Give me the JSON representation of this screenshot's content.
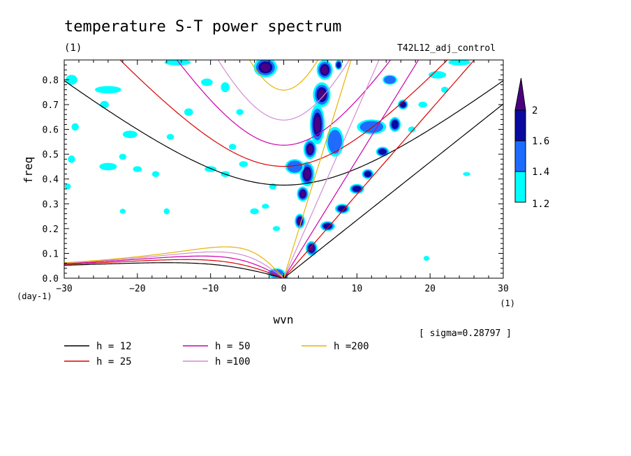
{
  "chart_data": {
    "type": "heatmap",
    "title": "temperature S-T power spectrum",
    "title_unit": "(1)",
    "experiment": "T42L12_adj_control",
    "xlabel": "wvn",
    "ylabel": "freq",
    "x_unit": "(1)",
    "y_unit": "(day-1)",
    "xlim": [
      -30,
      30
    ],
    "ylim": [
      0,
      0.88
    ],
    "x_ticks": [
      -30,
      -20,
      -10,
      0,
      10,
      20,
      30
    ],
    "x_tick_labels": [
      "-30",
      "-20",
      "-10",
      "0",
      "10",
      "20",
      "30"
    ],
    "y_ticks": [
      0,
      0.1,
      0.2,
      0.3,
      0.4,
      0.5,
      0.6,
      0.7,
      0.8
    ],
    "y_tick_labels": [
      "0.0",
      "0.1",
      "0.2",
      "0.3",
      "0.4",
      "0.5",
      "0.6",
      "0.7",
      "0.8"
    ],
    "sigma_label": "[ sigma=0.28797 ]",
    "colorbar": {
      "levels": [
        1.2,
        1.4,
        1.6,
        2
      ],
      "labels": [
        "1.2",
        "1.4",
        "1.6",
        "2"
      ],
      "colors": [
        "#00ffff",
        "#1e6cff",
        "#0a0aa0",
        "#4b0082"
      ]
    },
    "legend": [
      {
        "label": "h = 12",
        "color": "#000000",
        "h": 12
      },
      {
        "label": "h = 25",
        "color": "#dd0000",
        "h": 25
      },
      {
        "label": "h = 50",
        "color": "#cc00aa",
        "h": 50
      },
      {
        "label": "h =100",
        "color": "#d28cd2",
        "h": 100
      },
      {
        "label": "h =200",
        "color": "#e6b400",
        "h": 200
      }
    ],
    "blobs": [
      {
        "x": 3.8,
        "y": 0.12,
        "rx": 0.8,
        "ry": 0.03,
        "level": 3
      },
      {
        "x": 2.2,
        "y": 0.23,
        "rx": 0.7,
        "ry": 0.03,
        "level": 3
      },
      {
        "x": 2.6,
        "y": 0.34,
        "rx": 0.8,
        "ry": 0.03,
        "level": 3
      },
      {
        "x": 3.2,
        "y": 0.42,
        "rx": 1.0,
        "ry": 0.05,
        "level": 3
      },
      {
        "x": 3.6,
        "y": 0.52,
        "rx": 0.9,
        "ry": 0.04,
        "level": 3
      },
      {
        "x": 4.6,
        "y": 0.62,
        "rx": 1.0,
        "ry": 0.08,
        "level": 3
      },
      {
        "x": 5.2,
        "y": 0.74,
        "rx": 1.2,
        "ry": 0.05,
        "level": 3
      },
      {
        "x": 5.6,
        "y": 0.84,
        "rx": 1.1,
        "ry": 0.04,
        "level": 3
      },
      {
        "x": -2.5,
        "y": 0.85,
        "rx": 1.6,
        "ry": 0.04,
        "level": 3
      },
      {
        "x": 6.0,
        "y": 0.21,
        "rx": 1.0,
        "ry": 0.02,
        "level": 2
      },
      {
        "x": 8.0,
        "y": 0.28,
        "rx": 1.0,
        "ry": 0.02,
        "level": 2
      },
      {
        "x": 10.0,
        "y": 0.36,
        "rx": 1.0,
        "ry": 0.02,
        "level": 2
      },
      {
        "x": 11.5,
        "y": 0.42,
        "rx": 0.8,
        "ry": 0.02,
        "level": 2
      },
      {
        "x": 13.5,
        "y": 0.51,
        "rx": 0.9,
        "ry": 0.02,
        "level": 2
      },
      {
        "x": 15.2,
        "y": 0.62,
        "rx": 0.8,
        "ry": 0.03,
        "level": 2
      },
      {
        "x": 16.3,
        "y": 0.7,
        "rx": 0.7,
        "ry": 0.02,
        "level": 2
      },
      {
        "x": 1.5,
        "y": 0.45,
        "rx": 1.3,
        "ry": 0.03,
        "level": 1
      },
      {
        "x": 7.0,
        "y": 0.55,
        "rx": 1.2,
        "ry": 0.06,
        "level": 1
      },
      {
        "x": 12.0,
        "y": 0.61,
        "rx": 2.0,
        "ry": 0.03,
        "level": 1
      },
      {
        "x": 14.5,
        "y": 0.8,
        "rx": 1.0,
        "ry": 0.02,
        "level": 1
      },
      {
        "x": -1.0,
        "y": 0.02,
        "rx": 1.2,
        "ry": 0.02,
        "level": 1
      },
      {
        "x": 0.0,
        "y": 0.005,
        "rx": 0.6,
        "ry": 0.01,
        "level": 3
      },
      {
        "x": -29,
        "y": 0.8,
        "rx": 0.8,
        "ry": 0.02,
        "level": 0
      },
      {
        "x": -24,
        "y": 0.76,
        "rx": 1.8,
        "ry": 0.015,
        "level": 0
      },
      {
        "x": -28.5,
        "y": 0.61,
        "rx": 0.5,
        "ry": 0.015,
        "level": 0
      },
      {
        "x": -24.5,
        "y": 0.7,
        "rx": 0.6,
        "ry": 0.015,
        "level": 0
      },
      {
        "x": -21,
        "y": 0.58,
        "rx": 1.0,
        "ry": 0.015,
        "level": 0
      },
      {
        "x": -24,
        "y": 0.45,
        "rx": 1.2,
        "ry": 0.015,
        "level": 0
      },
      {
        "x": -20,
        "y": 0.44,
        "rx": 0.6,
        "ry": 0.012,
        "level": 0
      },
      {
        "x": -22,
        "y": 0.49,
        "rx": 0.5,
        "ry": 0.012,
        "level": 0
      },
      {
        "x": -29,
        "y": 0.48,
        "rx": 0.5,
        "ry": 0.015,
        "level": 0
      },
      {
        "x": -10,
        "y": 0.44,
        "rx": 0.8,
        "ry": 0.012,
        "level": 0
      },
      {
        "x": -8,
        "y": 0.42,
        "rx": 0.6,
        "ry": 0.012,
        "level": 0
      },
      {
        "x": -13,
        "y": 0.67,
        "rx": 0.6,
        "ry": 0.015,
        "level": 0
      },
      {
        "x": -15.5,
        "y": 0.57,
        "rx": 0.5,
        "ry": 0.012,
        "level": 0
      },
      {
        "x": -17.5,
        "y": 0.42,
        "rx": 0.5,
        "ry": 0.012,
        "level": 0
      },
      {
        "x": -10.5,
        "y": 0.79,
        "rx": 0.8,
        "ry": 0.015,
        "level": 0
      },
      {
        "x": -8,
        "y": 0.77,
        "rx": 0.6,
        "ry": 0.02,
        "level": 0
      },
      {
        "x": -5.5,
        "y": 0.46,
        "rx": 0.6,
        "ry": 0.012,
        "level": 0
      },
      {
        "x": -14.5,
        "y": 0.87,
        "rx": 1.8,
        "ry": 0.012,
        "level": 0
      },
      {
        "x": -6,
        "y": 0.67,
        "rx": 0.5,
        "ry": 0.012,
        "level": 0
      },
      {
        "x": -4,
        "y": 0.27,
        "rx": 0.6,
        "ry": 0.012,
        "level": 0
      },
      {
        "x": -1,
        "y": 0.2,
        "rx": 0.5,
        "ry": 0.01,
        "level": 0
      },
      {
        "x": -16,
        "y": 0.27,
        "rx": 0.4,
        "ry": 0.012,
        "level": 0
      },
      {
        "x": -22,
        "y": 0.27,
        "rx": 0.4,
        "ry": 0.01,
        "level": 0
      },
      {
        "x": -29.5,
        "y": 0.37,
        "rx": 0.4,
        "ry": 0.012,
        "level": 0
      },
      {
        "x": -2.5,
        "y": 0.29,
        "rx": 0.5,
        "ry": 0.01,
        "level": 0
      },
      {
        "x": 21,
        "y": 0.82,
        "rx": 1.2,
        "ry": 0.015,
        "level": 0
      },
      {
        "x": 24,
        "y": 0.87,
        "rx": 1.5,
        "ry": 0.012,
        "level": 0
      },
      {
        "x": 19,
        "y": 0.7,
        "rx": 0.6,
        "ry": 0.012,
        "level": 0
      },
      {
        "x": 17.5,
        "y": 0.6,
        "rx": 0.5,
        "ry": 0.012,
        "level": 0
      },
      {
        "x": 22,
        "y": 0.76,
        "rx": 0.5,
        "ry": 0.012,
        "level": 0
      },
      {
        "x": 25,
        "y": 0.42,
        "rx": 0.5,
        "ry": 0.008,
        "level": 0
      },
      {
        "x": 19.5,
        "y": 0.08,
        "rx": 0.4,
        "ry": 0.01,
        "level": 0
      },
      {
        "x": 7.5,
        "y": 0.86,
        "rx": 0.5,
        "ry": 0.02,
        "level": 2
      },
      {
        "x": -7,
        "y": 0.53,
        "rx": 0.5,
        "ry": 0.012,
        "level": 0
      },
      {
        "x": -1.5,
        "y": 0.37,
        "rx": 0.5,
        "ry": 0.012,
        "level": 0
      }
    ]
  }
}
